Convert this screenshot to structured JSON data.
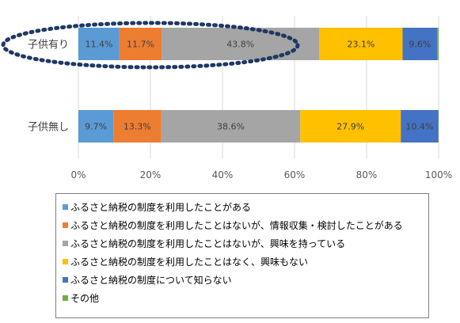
{
  "chart_data": {
    "type": "bar",
    "orientation": "horizontal",
    "stacked": "percent",
    "categories": [
      "子供有り",
      "子供無し"
    ],
    "series": [
      {
        "name": "ふるさと納税の制度を利用したことがある",
        "color": "#5b9bd5",
        "values": [
          11.4,
          9.7
        ]
      },
      {
        "name": "ふるさと納税の制度を利用したことはないが、情報収集・検討したことがある",
        "color": "#ed7d31",
        "values": [
          11.7,
          13.3
        ]
      },
      {
        "name": "ふるさと納税の制度を利用したことはないが、興味を持っている",
        "color": "#a5a5a5",
        "values": [
          43.8,
          38.6
        ]
      },
      {
        "name": "ふるさと納税の制度を利用したことはなく、興味もない",
        "color": "#ffc000",
        "values": [
          23.1,
          27.9
        ]
      },
      {
        "name": "ふるさと納税の制度について知らない",
        "color": "#4472c4",
        "values": [
          9.6,
          10.4
        ]
      },
      {
        "name": "その他",
        "color": "#70ad47",
        "values": [
          0.4,
          0.1
        ]
      }
    ],
    "data_labels": [
      [
        "11.4%",
        "11.7%",
        "43.8%",
        "23.1%",
        "9.6%",
        ""
      ],
      [
        "9.7%",
        "13.3%",
        "38.6%",
        "27.9%",
        "10.4%",
        ""
      ]
    ],
    "x_ticks": [
      "0%",
      "20%",
      "40%",
      "60%",
      "80%",
      "100%"
    ],
    "xlim": [
      0,
      100
    ],
    "grid": true,
    "legend_position": "bottom",
    "annotation": {
      "shape": "dashed-ellipse",
      "color": "#1f3864",
      "target_category": "子供有り"
    }
  }
}
